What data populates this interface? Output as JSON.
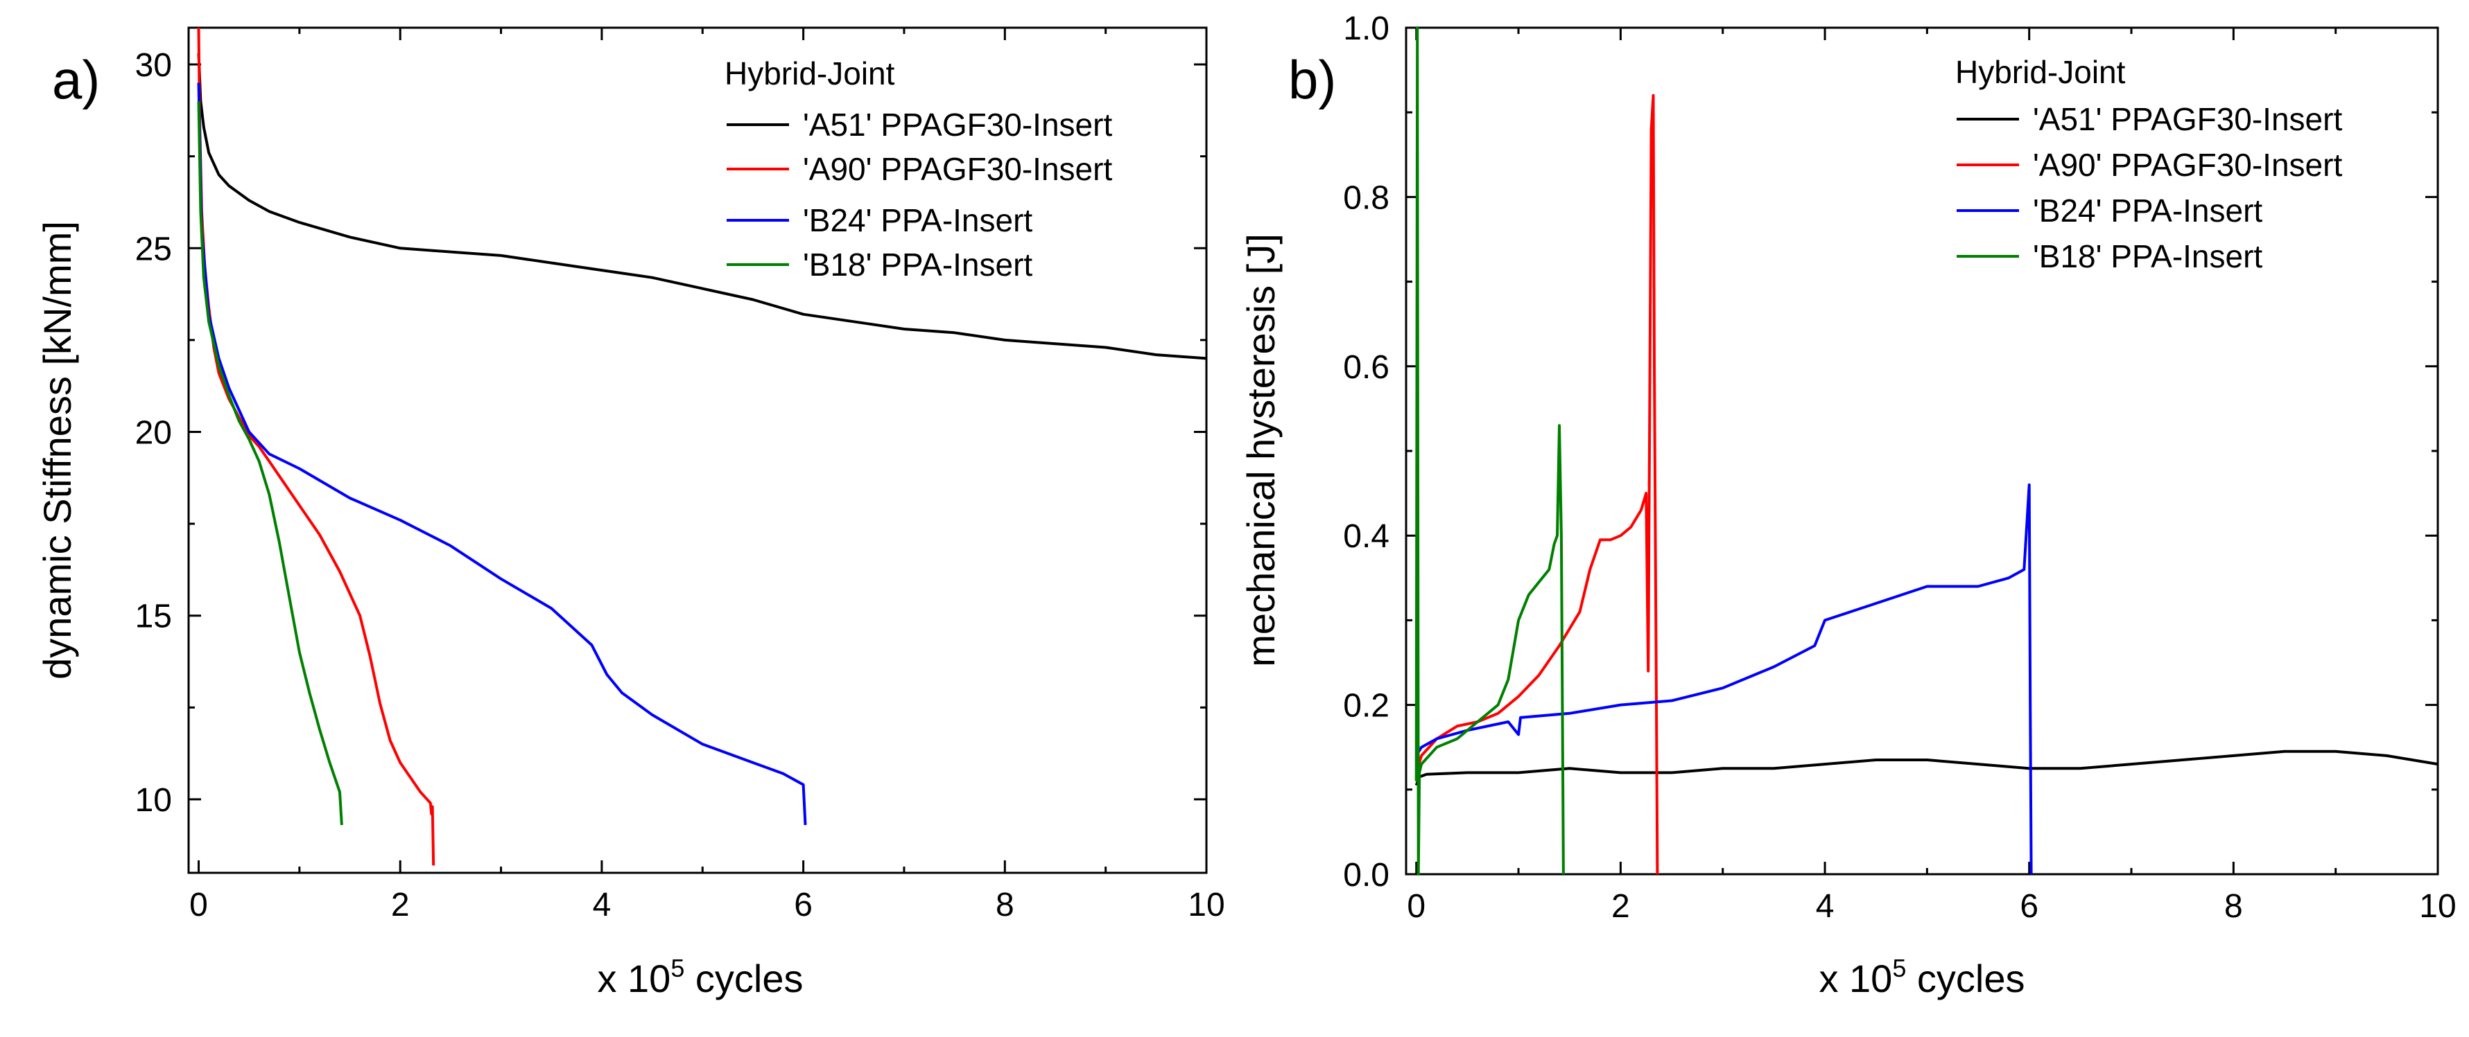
{
  "chart_data": [
    {
      "type": "line",
      "panel_label": "a)",
      "title": "",
      "xlabel": {
        "prefix": "x 10",
        "superscript": "5",
        "suffix": " cycles"
      },
      "ylabel": "dynamic Stiffness [kN/mm]",
      "xlim": [
        -0.1,
        10
      ],
      "ylim": [
        8,
        31
      ],
      "xticks": [
        0,
        2,
        4,
        6,
        8,
        10
      ],
      "yticks": [
        10,
        15,
        20,
        25,
        30
      ],
      "grid": false,
      "legend_title": "Hybrid-Joint",
      "legend_position": "top-right",
      "series": [
        {
          "name": "'A51' PPAGF30-Insert",
          "color": "#000000",
          "x": [
            0,
            0.02,
            0.05,
            0.1,
            0.2,
            0.3,
            0.5,
            0.7,
            1.0,
            1.5,
            2.0,
            2.5,
            3.0,
            3.5,
            4.0,
            4.5,
            5.0,
            5.5,
            6.0,
            6.5,
            7.0,
            7.5,
            8.0,
            8.5,
            9.0,
            9.5,
            10.0
          ],
          "y": [
            30.3,
            29.0,
            28.3,
            27.6,
            27.0,
            26.7,
            26.3,
            26.0,
            25.7,
            25.3,
            25.0,
            24.9,
            24.8,
            24.6,
            24.4,
            24.2,
            23.9,
            23.6,
            23.2,
            23.0,
            22.8,
            22.7,
            22.5,
            22.4,
            22.3,
            22.1,
            22.0
          ]
        },
        {
          "name": "'A90' PPAGF30-Insert",
          "color": "#ff0000",
          "x": [
            0,
            0.01,
            0.03,
            0.06,
            0.1,
            0.15,
            0.2,
            0.3,
            0.4,
            0.5,
            0.6,
            0.7,
            0.8,
            1.0,
            1.2,
            1.4,
            1.6,
            1.7,
            1.8,
            1.9,
            2.0,
            2.1,
            2.2,
            2.3,
            2.31,
            2.32,
            2.33
          ],
          "y": [
            31.0,
            28.5,
            26.0,
            24.5,
            23.4,
            22.3,
            21.6,
            20.9,
            20.4,
            19.9,
            19.6,
            19.2,
            18.8,
            18.0,
            17.2,
            16.2,
            15.0,
            13.9,
            12.6,
            11.6,
            11.0,
            10.6,
            10.2,
            9.9,
            9.6,
            9.8,
            8.2
          ]
        },
        {
          "name": "'B24' PPA-Insert",
          "color": "#0000ff",
          "x": [
            0,
            0.03,
            0.1,
            0.2,
            0.3,
            0.4,
            0.5,
            0.7,
            1.0,
            1.5,
            2.0,
            2.5,
            3.0,
            3.5,
            3.9,
            4.05,
            4.2,
            4.5,
            5.0,
            5.5,
            5.8,
            6.0,
            6.02
          ],
          "y": [
            29.5,
            25.5,
            23.2,
            22.0,
            21.2,
            20.6,
            20.0,
            19.4,
            19.0,
            18.2,
            17.6,
            16.9,
            16.0,
            15.2,
            14.2,
            13.4,
            12.9,
            12.3,
            11.5,
            11.0,
            10.7,
            10.4,
            9.3
          ]
        },
        {
          "name": "'B18' PPA-Insert",
          "color": "#008000",
          "x": [
            0,
            0.02,
            0.05,
            0.1,
            0.2,
            0.3,
            0.4,
            0.5,
            0.6,
            0.7,
            0.8,
            0.9,
            1.0,
            1.1,
            1.2,
            1.3,
            1.4,
            1.42
          ],
          "y": [
            29.0,
            26.0,
            24.2,
            23.0,
            21.8,
            21.0,
            20.3,
            19.8,
            19.2,
            18.3,
            17.0,
            15.5,
            14.0,
            12.9,
            11.9,
            11.0,
            10.2,
            9.3
          ]
        }
      ]
    },
    {
      "type": "line",
      "panel_label": "b)",
      "title": "",
      "xlabel": {
        "prefix": "x 10",
        "superscript": "5",
        "suffix": " cycles"
      },
      "ylabel": "mechanical hysteresis [J]",
      "xlim": [
        -0.1,
        10
      ],
      "ylim": [
        0,
        1.0
      ],
      "xticks": [
        0,
        2,
        4,
        6,
        8,
        10
      ],
      "yticks": [
        0.0,
        0.2,
        0.4,
        0.6,
        0.8,
        1.0
      ],
      "grid": false,
      "legend_title": "Hybrid-Joint",
      "legend_position": "top-right",
      "series": [
        {
          "name": "'A51' PPAGF30-Insert",
          "color": "#000000",
          "x": [
            0,
            0.03,
            0.1,
            0.5,
            1.0,
            1.5,
            2.0,
            2.5,
            3.0,
            3.5,
            4.0,
            4.5,
            5.0,
            5.5,
            6.0,
            6.5,
            7.0,
            7.5,
            8.0,
            8.5,
            9.0,
            9.5,
            10.0
          ],
          "y": [
            0.105,
            0.115,
            0.118,
            0.12,
            0.12,
            0.125,
            0.12,
            0.12,
            0.125,
            0.125,
            0.13,
            0.135,
            0.135,
            0.13,
            0.125,
            0.125,
            0.13,
            0.135,
            0.14,
            0.145,
            0.145,
            0.14,
            0.13
          ]
        },
        {
          "name": "'A90' PPAGF30-Insert",
          "color": "#ff0000",
          "x": [
            0,
            0.05,
            0.2,
            0.4,
            0.6,
            0.8,
            1.0,
            1.2,
            1.4,
            1.6,
            1.7,
            1.8,
            1.9,
            2.0,
            2.1,
            2.2,
            2.25,
            2.27,
            2.28,
            2.3,
            2.32,
            2.33,
            2.35,
            2.36
          ],
          "y": [
            0.12,
            0.14,
            0.16,
            0.175,
            0.18,
            0.19,
            0.21,
            0.235,
            0.27,
            0.31,
            0.36,
            0.395,
            0.395,
            0.4,
            0.41,
            0.43,
            0.45,
            0.24,
            0.45,
            0.88,
            0.92,
            0.6,
            0.2,
            0.0
          ]
        },
        {
          "name": "'B24' PPA-Insert",
          "color": "#0000ff",
          "x": [
            0,
            0.05,
            0.2,
            0.5,
            0.9,
            1.0,
            1.02,
            1.5,
            2.0,
            2.5,
            3.0,
            3.5,
            3.9,
            4.0,
            4.5,
            5.0,
            5.5,
            5.8,
            5.95,
            6.0,
            6.01,
            6.02
          ],
          "y": [
            0.14,
            0.15,
            0.16,
            0.17,
            0.18,
            0.165,
            0.185,
            0.19,
            0.2,
            0.205,
            0.22,
            0.245,
            0.27,
            0.3,
            0.32,
            0.34,
            0.34,
            0.35,
            0.36,
            0.46,
            0.2,
            0.0
          ]
        },
        {
          "name": "'B18' PPA-Insert",
          "color": "#008000",
          "x": [
            0,
            0.01,
            0.02,
            0.03,
            0.05,
            0.2,
            0.4,
            0.6,
            0.8,
            0.9,
            1.0,
            1.1,
            1.2,
            1.3,
            1.35,
            1.38,
            1.4,
            1.42,
            1.43,
            1.44
          ],
          "y": [
            0.11,
            1.0,
            0.0,
            0.12,
            0.13,
            0.15,
            0.16,
            0.18,
            0.2,
            0.23,
            0.3,
            0.33,
            0.345,
            0.36,
            0.39,
            0.4,
            0.53,
            0.4,
            0.2,
            0.0
          ]
        }
      ]
    }
  ]
}
